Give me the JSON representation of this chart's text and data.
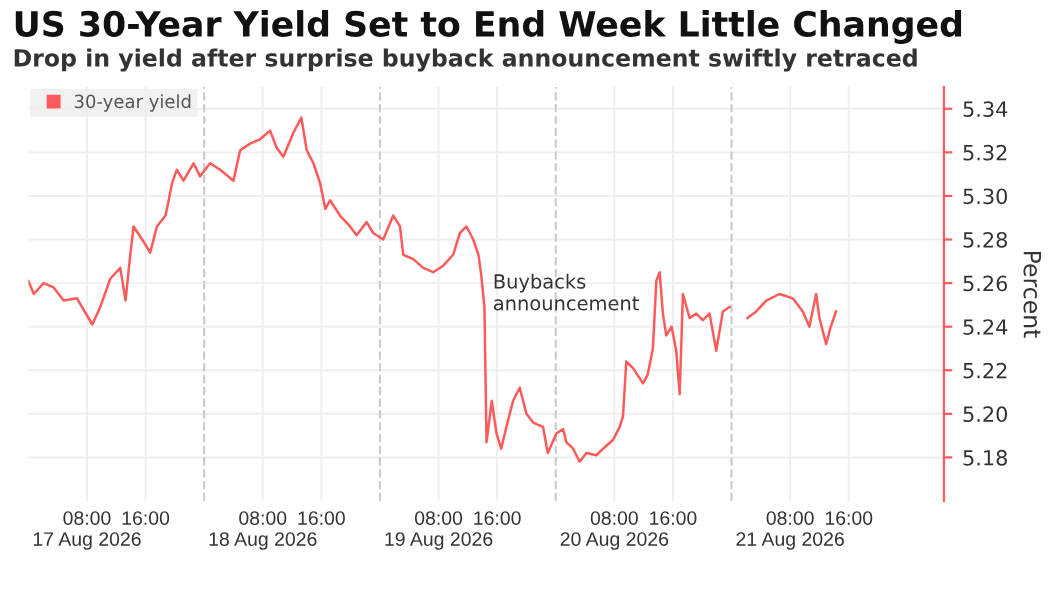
{
  "chart_data": {
    "type": "line",
    "title": "US 30-Year Yield Set to End Week Little Changed",
    "subtitle": "Drop in yield after surprise buyback announcement swiftly retraced",
    "ylabel": "Percent",
    "series": [
      {
        "name": "30-year yield",
        "color": "#ff5a5a",
        "x": [
          "2026-08-17T00:00",
          "2026-08-17T00:45",
          "2026-08-17T02:05",
          "2026-08-17T03:27",
          "2026-08-17T04:49",
          "2026-08-17T06:38",
          "2026-08-17T08:44",
          "2026-08-17T09:49",
          "2026-08-17T11:11",
          "2026-08-17T12:33",
          "2026-08-17T13:16",
          "2026-08-17T13:55",
          "2026-08-17T14:22",
          "2026-08-17T15:44",
          "2026-08-17T16:38",
          "2026-08-17T17:33",
          "2026-08-17T18:44",
          "2026-08-17T19:38",
          "2026-08-17T20:16",
          "2026-08-17T21:11",
          "2026-08-17T22:33",
          "2026-08-17T23:27",
          "2026-08-18T00:49",
          "2026-08-18T02:11",
          "2026-08-18T04:00",
          "2026-08-18T04:55",
          "2026-08-18T06:16",
          "2026-08-18T07:38",
          "2026-08-18T09:00",
          "2026-08-18T09:55",
          "2026-08-18T10:49",
          "2026-08-18T12:11",
          "2026-08-18T13:16",
          "2026-08-18T14:00",
          "2026-08-18T14:55",
          "2026-08-18T15:49",
          "2026-08-18T16:33",
          "2026-08-18T17:11",
          "2026-08-18T18:33",
          "2026-08-18T19:55",
          "2026-08-18T20:49",
          "2026-08-18T22:11",
          "2026-08-18T23:05",
          "2026-08-19T00:27",
          "2026-08-19T01:49",
          "2026-08-19T02:44",
          "2026-08-19T03:11",
          "2026-08-19T04:33",
          "2026-08-19T05:55",
          "2026-08-19T07:16",
          "2026-08-19T08:38",
          "2026-08-19T10:00",
          "2026-08-19T10:55",
          "2026-08-19T11:49",
          "2026-08-19T12:44",
          "2026-08-19T13:27",
          "2026-08-19T13:49",
          "2026-08-19T14:16",
          "2026-08-19T14:33",
          "2026-08-19T15:16",
          "2026-08-19T15:55",
          "2026-08-19T16:33",
          "2026-08-19T17:16",
          "2026-08-19T18:11",
          "2026-08-19T19:05",
          "2026-08-19T20:00",
          "2026-08-19T20:55",
          "2026-08-19T22:16",
          "2026-08-19T22:55",
          "2026-08-20T00:05",
          "2026-08-20T01:00",
          "2026-08-20T01:27",
          "2026-08-20T02:22",
          "2026-08-20T03:16",
          "2026-08-20T04:11",
          "2026-08-20T05:33",
          "2026-08-20T06:27",
          "2026-08-20T07:49",
          "2026-08-20T08:44",
          "2026-08-20T09:11",
          "2026-08-20T09:38",
          "2026-08-20T10:33",
          "2026-08-20T11:55",
          "2026-08-20T12:33",
          "2026-08-20T13:16",
          "2026-08-20T13:44",
          "2026-08-20T14:11",
          "2026-08-20T14:38",
          "2026-08-20T15:05",
          "2026-08-20T15:49",
          "2026-08-20T16:27",
          "2026-08-20T16:55",
          "2026-08-20T17:22",
          "2026-08-20T18:16",
          "2026-08-20T19:11",
          "2026-08-20T20:05",
          "2026-08-20T21:00",
          "2026-08-20T21:55",
          "2026-08-20T22:49",
          "2026-08-20T23:44",
          "2026-08-21T00:30",
          "2026-08-21T02:11",
          "2026-08-21T03:22",
          "2026-08-21T04:44",
          "2026-08-21T06:33",
          "2026-08-21T08:22",
          "2026-08-21T09:44",
          "2026-08-21T10:38",
          "2026-08-21T11:33",
          "2026-08-21T12:00",
          "2026-08-21T12:55",
          "2026-08-21T13:33",
          "2026-08-21T14:16"
        ],
        "values": [
          5.261,
          5.255,
          5.26,
          5.258,
          5.252,
          5.253,
          5.241,
          5.249,
          5.262,
          5.267,
          5.252,
          5.273,
          5.286,
          5.279,
          5.274,
          5.286,
          5.291,
          5.306,
          5.312,
          5.307,
          5.315,
          5.309,
          5.315,
          5.312,
          5.307,
          5.321,
          5.324,
          5.326,
          5.33,
          5.322,
          5.318,
          5.329,
          5.336,
          5.321,
          5.315,
          5.306,
          5.294,
          5.298,
          5.291,
          5.286,
          5.282,
          5.288,
          5.283,
          5.28,
          5.291,
          5.286,
          5.273,
          5.271,
          5.267,
          5.265,
          5.268,
          5.273,
          5.283,
          5.286,
          5.28,
          5.273,
          5.264,
          5.249,
          5.187,
          5.206,
          5.191,
          5.184,
          5.194,
          5.206,
          5.212,
          5.2,
          5.196,
          5.194,
          5.182,
          5.191,
          5.193,
          5.187,
          5.184,
          5.178,
          5.182,
          5.181,
          5.184,
          5.188,
          5.194,
          5.199,
          5.224,
          5.221,
          5.214,
          5.218,
          5.23,
          5.261,
          5.265,
          5.246,
          5.236,
          5.24,
          5.229,
          5.209,
          5.255,
          5.244,
          5.246,
          5.243,
          5.246,
          5.229,
          5.247,
          5.249,
          null,
          5.244,
          5.247,
          5.252,
          5.255,
          5.253,
          5.247,
          5.24,
          5.255,
          5.244,
          5.232,
          5.24,
          5.247
        ]
      }
    ],
    "xlim": [
      "2026-08-17T00:00",
      "2026-08-22T05:00"
    ],
    "xticks": [
      {
        "value": "2026-08-17T08:00",
        "label": "08:00\n17 Aug 2026"
      },
      {
        "value": "2026-08-17T16:00",
        "label": "16:00"
      },
      {
        "value": "2026-08-18T08:00",
        "label": "08:00\n18 Aug 2026"
      },
      {
        "value": "2026-08-18T16:00",
        "label": "16:00"
      },
      {
        "value": "2026-08-19T08:00",
        "label": "08:00\n19 Aug 2026"
      },
      {
        "value": "2026-08-19T16:00",
        "label": "16:00"
      },
      {
        "value": "2026-08-20T08:00",
        "label": "08:00\n20 Aug 2026"
      },
      {
        "value": "2026-08-20T16:00",
        "label": "16:00"
      },
      {
        "value": "2026-08-21T08:00",
        "label": "08:00\n21 Aug 2026"
      },
      {
        "value": "2026-08-21T16:00",
        "label": "16:00"
      }
    ],
    "ylim": [
      5.16,
      5.35
    ],
    "yticks": [
      {
        "value": 5.18,
        "label": "5.18"
      },
      {
        "value": 5.2,
        "label": "5.20"
      },
      {
        "value": 5.22,
        "label": "5.22"
      },
      {
        "value": 5.24,
        "label": "5.24"
      },
      {
        "value": 5.26,
        "label": "5.26"
      },
      {
        "value": 5.28,
        "label": "5.28"
      },
      {
        "value": 5.3,
        "label": "5.30"
      },
      {
        "value": 5.32,
        "label": "5.32"
      },
      {
        "value": 5.34,
        "label": "5.34"
      }
    ],
    "ref_lines": [
      {
        "axis": "x",
        "value": "2026-08-18T00:00",
        "color": "#cccccc",
        "line_style": "dashed"
      },
      {
        "axis": "x",
        "value": "2026-08-19T00:00",
        "color": "#cccccc",
        "line_style": "dashed"
      },
      {
        "axis": "x",
        "value": "2026-08-20T00:00",
        "color": "#cccccc",
        "line_style": "dashed"
      },
      {
        "axis": "x",
        "value": "2026-08-21T00:00",
        "color": "#cccccc",
        "line_style": "dashed"
      }
    ],
    "annotations": [
      {
        "text": "Buybacks\nannouncement",
        "x": "2026-08-19T14:16",
        "y": 5.255
      }
    ],
    "grid": true,
    "legend": "top left",
    "line_style": "solid",
    "marker": "none"
  }
}
